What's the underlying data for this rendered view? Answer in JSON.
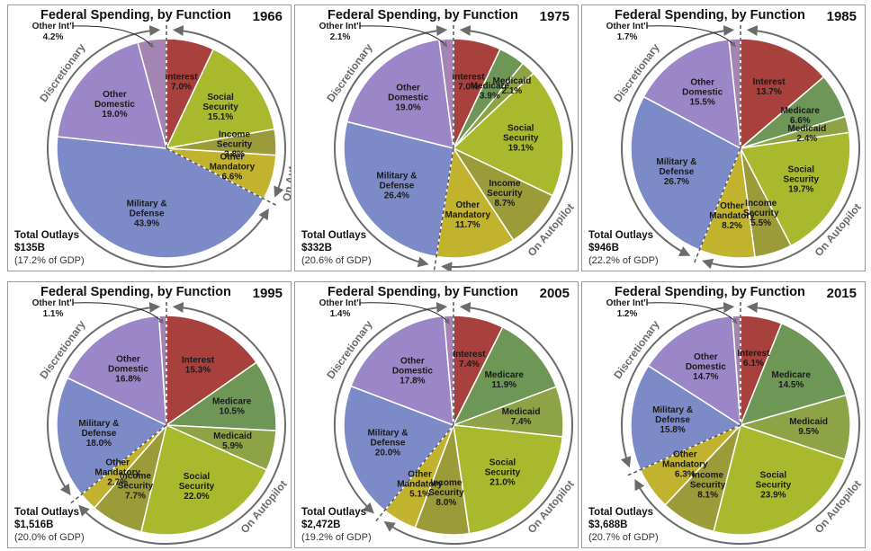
{
  "chart_data": [
    {
      "type": "pie",
      "title": "Federal Spending, by Function",
      "year": "1966",
      "total_label": "Total Outlays",
      "total_value": "$135B",
      "gdp_share": "(17.2% of GDP)",
      "arc_labels": {
        "discretionary": "Discretionary",
        "autopilot": "On Autopilot"
      },
      "slices": [
        {
          "name": "Interest",
          "value": 7.0,
          "label": "7.0%",
          "color": "#a8403d"
        },
        {
          "name": "Social Security",
          "value": 15.1,
          "label": "15.1%",
          "color": "#a9b92e"
        },
        {
          "name": "Income Security",
          "value": 3.8,
          "label": "3.8%",
          "color": "#9c9b3a"
        },
        {
          "name": "Other Mandatory",
          "value": 6.6,
          "label": "6.6%",
          "color": "#c2b32f"
        },
        {
          "name": "Military & Defense",
          "value": 43.9,
          "label": "43.9%",
          "color": "#7c8bc7"
        },
        {
          "name": "Other Domestic",
          "value": 19.0,
          "label": "19.0%",
          "color": "#9b87c8"
        },
        {
          "name": "Other Int'l",
          "value": 4.2,
          "label": "4.2%",
          "color": "#a484b3"
        }
      ]
    },
    {
      "type": "pie",
      "title": "Federal Spending, by Function",
      "year": "1975",
      "total_label": "Total Outlays",
      "total_value": "$332B",
      "gdp_share": "(20.6% of GDP)",
      "arc_labels": {
        "discretionary": "Discretionary",
        "autopilot": "On Autopilot"
      },
      "slices": [
        {
          "name": "Interest",
          "value": 7.0,
          "label": "7.0%",
          "color": "#a8403d"
        },
        {
          "name": "Medicare",
          "value": 3.9,
          "label": "3.9%",
          "color": "#6e9656"
        },
        {
          "name": "Medicaid",
          "value": 2.1,
          "label": "2.1%",
          "color": "#8ea246"
        },
        {
          "name": "Social Security",
          "value": 19.1,
          "label": "19.1%",
          "color": "#a9b92e"
        },
        {
          "name": "Income Security",
          "value": 8.7,
          "label": "8.7%",
          "color": "#9c9b3a"
        },
        {
          "name": "Other Mandatory",
          "value": 11.7,
          "label": "11.7%",
          "color": "#c2b32f"
        },
        {
          "name": "Military & Defense",
          "value": 26.4,
          "label": "26.4%",
          "color": "#7c8bc7"
        },
        {
          "name": "Other Domestic",
          "value": 19.0,
          "label": "19.0%",
          "color": "#9b87c8"
        },
        {
          "name": "Other Int'l",
          "value": 2.1,
          "label": "2.1%",
          "color": "#a484b3"
        }
      ]
    },
    {
      "type": "pie",
      "title": "Federal Spending, by Function",
      "year": "1985",
      "total_label": "Total Outlays",
      "total_value": "$946B",
      "gdp_share": "(22.2% of GDP)",
      "arc_labels": {
        "discretionary": "Discretionary",
        "autopilot": "On Autopilot"
      },
      "slices": [
        {
          "name": "Interest",
          "value": 13.7,
          "label": "13.7%",
          "color": "#a8403d"
        },
        {
          "name": "Medicare",
          "value": 6.6,
          "label": "6.6%",
          "color": "#6e9656"
        },
        {
          "name": "Medicaid",
          "value": 2.4,
          "label": "2.4%",
          "color": "#8ea246"
        },
        {
          "name": "Social Security",
          "value": 19.7,
          "label": "19.7%",
          "color": "#a9b92e"
        },
        {
          "name": "Income Security",
          "value": 5.5,
          "label": "5.5%",
          "color": "#9c9b3a"
        },
        {
          "name": "Other Mandatory",
          "value": 8.2,
          "label": "8.2%",
          "color": "#c2b32f"
        },
        {
          "name": "Military & Defense",
          "value": 26.7,
          "label": "26.7%",
          "color": "#7c8bc7"
        },
        {
          "name": "Other Domestic",
          "value": 15.5,
          "label": "15.5%",
          "color": "#9b87c8"
        },
        {
          "name": "Other Int'l",
          "value": 1.7,
          "label": "1.7%",
          "color": "#a484b3"
        }
      ]
    },
    {
      "type": "pie",
      "title": "Federal Spending, by Function",
      "year": "1995",
      "total_label": "Total Outlays",
      "total_value": "$1,516B",
      "gdp_share": "(20.0% of GDP)",
      "arc_labels": {
        "discretionary": "Discretionary",
        "autopilot": "On Autopilot"
      },
      "slices": [
        {
          "name": "Interest",
          "value": 15.3,
          "label": "15.3%",
          "color": "#a8403d"
        },
        {
          "name": "Medicare",
          "value": 10.5,
          "label": "10.5%",
          "color": "#6e9656"
        },
        {
          "name": "Medicaid",
          "value": 5.9,
          "label": "5.9%",
          "color": "#8ea246"
        },
        {
          "name": "Social Security",
          "value": 22.0,
          "label": "22.0%",
          "color": "#a9b92e"
        },
        {
          "name": "Income Security",
          "value": 7.7,
          "label": "7.7%",
          "color": "#9c9b3a"
        },
        {
          "name": "Other Mandatory",
          "value": 2.7,
          "label": "2.7%",
          "color": "#c2b32f"
        },
        {
          "name": "Military & Defense",
          "value": 18.0,
          "label": "18.0%",
          "color": "#7c8bc7"
        },
        {
          "name": "Other Domestic",
          "value": 16.8,
          "label": "16.8%",
          "color": "#9b87c8"
        },
        {
          "name": "Other Int'l",
          "value": 1.1,
          "label": "1.1%",
          "color": "#a484b3"
        }
      ]
    },
    {
      "type": "pie",
      "title": "Federal Spending, by Function",
      "year": "2005",
      "total_label": "Total Outlays",
      "total_value": "$2,472B",
      "gdp_share": "(19.2% of GDP)",
      "arc_labels": {
        "discretionary": "Discretionary",
        "autopilot": "On Autopilot"
      },
      "slices": [
        {
          "name": "Interest",
          "value": 7.4,
          "label": "7.4%",
          "color": "#a8403d"
        },
        {
          "name": "Medicare",
          "value": 11.9,
          "label": "11.9%",
          "color": "#6e9656"
        },
        {
          "name": "Medicaid",
          "value": 7.4,
          "label": "7.4%",
          "color": "#8ea246"
        },
        {
          "name": "Social Security",
          "value": 21.0,
          "label": "21.0%",
          "color": "#a9b92e"
        },
        {
          "name": "Income Security",
          "value": 8.0,
          "label": "8.0%",
          "color": "#9c9b3a"
        },
        {
          "name": "Other Mandatory",
          "value": 5.1,
          "label": "5.1%",
          "color": "#c2b32f"
        },
        {
          "name": "Military & Defense",
          "value": 20.0,
          "label": "20.0%",
          "color": "#7c8bc7"
        },
        {
          "name": "Other Domestic",
          "value": 17.8,
          "label": "17.8%",
          "color": "#9b87c8"
        },
        {
          "name": "Other Int'l",
          "value": 1.4,
          "label": "1.4%",
          "color": "#a484b3"
        }
      ]
    },
    {
      "type": "pie",
      "title": "Federal Spending, by Function",
      "year": "2015",
      "total_label": "Total Outlays",
      "total_value": "$3,688B",
      "gdp_share": "(20.7% of GDP)",
      "arc_labels": {
        "discretionary": "Discretionary",
        "autopilot": "On Autopilot"
      },
      "slices": [
        {
          "name": "Interest",
          "value": 6.1,
          "label": "6.1%",
          "color": "#a8403d"
        },
        {
          "name": "Medicare",
          "value": 14.5,
          "label": "14.5%",
          "color": "#6e9656"
        },
        {
          "name": "Medicaid",
          "value": 9.5,
          "label": "9.5%",
          "color": "#8ea246"
        },
        {
          "name": "Social Security",
          "value": 23.9,
          "label": "23.9%",
          "color": "#a9b92e"
        },
        {
          "name": "Income Security",
          "value": 8.1,
          "label": "8.1%",
          "color": "#9c9b3a"
        },
        {
          "name": "Other Mandatory",
          "value": 6.3,
          "label": "6.3%",
          "color": "#c2b32f"
        },
        {
          "name": "Military & Defense",
          "value": 15.8,
          "label": "15.8%",
          "color": "#7c8bc7"
        },
        {
          "name": "Other Domestic",
          "value": 14.7,
          "label": "14.7%",
          "color": "#9b87c8"
        },
        {
          "name": "Other Int'l",
          "value": 1.2,
          "label": "1.2%",
          "color": "#a484b3"
        }
      ]
    }
  ]
}
